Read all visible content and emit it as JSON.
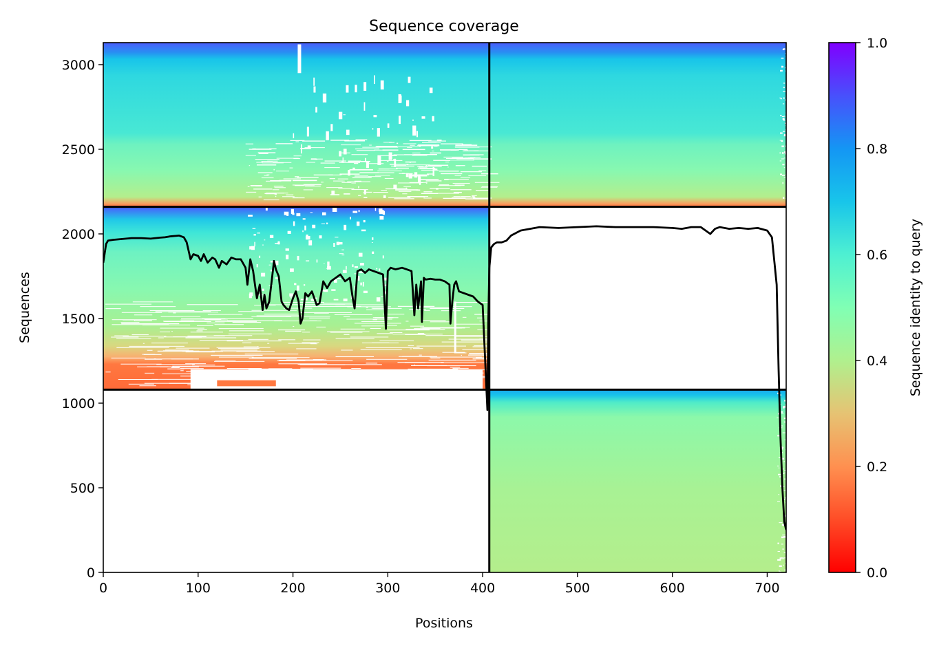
{
  "chart_data": {
    "type": "heatmap",
    "title": "Sequence coverage",
    "xlabel": "Positions",
    "ylabel": "Sequences",
    "xlim": [
      0,
      720
    ],
    "ylim": [
      0,
      3130
    ],
    "xticks": [
      0,
      100,
      200,
      300,
      400,
      500,
      600,
      700
    ],
    "yticks": [
      0,
      500,
      1000,
      1500,
      2000,
      2500,
      3000
    ],
    "colorbar": {
      "label": "Sequence identity to query",
      "colormap": "rainbow",
      "range": [
        0.0,
        1.0
      ],
      "ticks": [
        0.0,
        0.2,
        0.4,
        0.6,
        0.8,
        1.0
      ],
      "tick_labels": [
        "0.0",
        "0.2",
        "0.4",
        "0.6",
        "0.8",
        "1.0"
      ]
    },
    "chain_boundary_x": 407,
    "block_boundaries_y": [
      1080,
      2160
    ],
    "blocks": [
      {
        "x": [
          0,
          720
        ],
        "y": [
          2160,
          3130
        ],
        "identity_bottom": 0.2,
        "identity_top": 0.85
      },
      {
        "x": [
          0,
          407
        ],
        "y": [
          1080,
          2160
        ],
        "identity_bottom": 0.2,
        "identity_top": 0.85
      },
      {
        "x": [
          407,
          720
        ],
        "y": [
          0,
          1080
        ],
        "identity_bottom": 0.42,
        "identity_top": 0.75
      }
    ],
    "coverage_line": {
      "color": "#000000",
      "x": [
        0,
        3,
        5,
        10,
        20,
        30,
        40,
        50,
        60,
        65,
        70,
        80,
        85,
        88,
        90,
        92,
        95,
        100,
        103,
        106,
        110,
        115,
        118,
        122,
        125,
        130,
        135,
        140,
        145,
        150,
        152,
        155,
        158,
        160,
        162,
        165,
        168,
        170,
        172,
        175,
        178,
        180,
        182,
        185,
        188,
        190,
        193,
        196,
        200,
        203,
        206,
        208,
        210,
        213,
        216,
        220,
        225,
        228,
        232,
        236,
        240,
        245,
        250,
        255,
        260,
        263,
        265,
        268,
        272,
        276,
        280,
        285,
        290,
        295,
        298,
        300,
        303,
        308,
        315,
        320,
        325,
        328,
        330,
        332,
        335,
        336,
        338,
        340,
        345,
        350,
        355,
        360,
        365,
        366,
        368,
        370,
        372,
        375,
        380,
        385,
        390,
        395,
        400,
        405,
        406,
        407,
        409,
        412,
        415,
        420,
        425,
        430,
        440,
        450,
        460,
        480,
        500,
        520,
        540,
        560,
        580,
        600,
        610,
        620,
        630,
        640,
        645,
        650,
        660,
        670,
        680,
        690,
        700,
        705,
        710,
        712,
        714,
        716,
        718,
        720
      ],
      "y": [
        1830,
        1940,
        1960,
        1965,
        1970,
        1975,
        1975,
        1972,
        1978,
        1980,
        1985,
        1990,
        1980,
        1950,
        1900,
        1850,
        1880,
        1870,
        1840,
        1880,
        1830,
        1860,
        1850,
        1800,
        1840,
        1820,
        1860,
        1850,
        1850,
        1800,
        1700,
        1850,
        1780,
        1700,
        1620,
        1700,
        1550,
        1640,
        1560,
        1600,
        1740,
        1840,
        1790,
        1750,
        1600,
        1580,
        1560,
        1550,
        1620,
        1660,
        1600,
        1470,
        1500,
        1650,
        1630,
        1660,
        1580,
        1590,
        1720,
        1680,
        1720,
        1740,
        1760,
        1720,
        1740,
        1620,
        1560,
        1780,
        1790,
        1770,
        1790,
        1780,
        1770,
        1760,
        1440,
        1780,
        1800,
        1790,
        1800,
        1790,
        1780,
        1520,
        1700,
        1560,
        1720,
        1480,
        1740,
        1730,
        1735,
        1730,
        1730,
        1720,
        1700,
        1470,
        1600,
        1700,
        1720,
        1660,
        1650,
        1640,
        1630,
        1600,
        1580,
        960,
        1500,
        1800,
        1920,
        1940,
        1950,
        1950,
        1960,
        1990,
        2020,
        2030,
        2040,
        2035,
        2040,
        2045,
        2040,
        2040,
        2040,
        2035,
        2030,
        2040,
        2040,
        2000,
        2030,
        2040,
        2030,
        2035,
        2030,
        2035,
        2020,
        1980,
        1700,
        1200,
        800,
        500,
        300,
        250
      ]
    }
  }
}
